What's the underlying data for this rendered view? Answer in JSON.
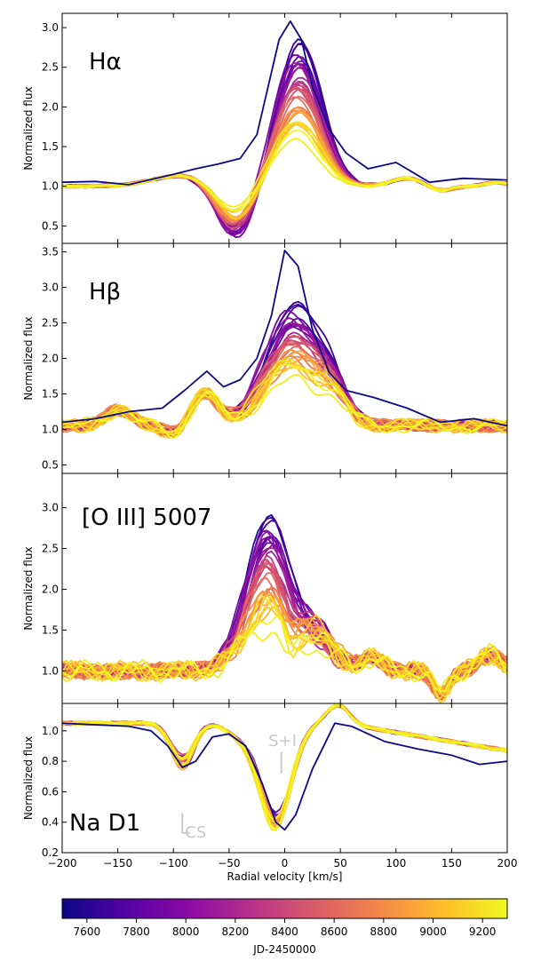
{
  "chart_data": {
    "type": "line",
    "xlabel": "Radial velocity [km/s]",
    "xlim": [
      -200,
      200
    ],
    "xticks": [
      -200,
      -150,
      -100,
      -50,
      0,
      50,
      100,
      150,
      200
    ],
    "xtick_labels": [
      "−200",
      "−150",
      "−100",
      "−50",
      "0",
      "50",
      "100",
      "150",
      "200"
    ],
    "colorbar": {
      "label": "JD-2450000",
      "range": [
        7500,
        9300
      ],
      "ticks": [
        7600,
        7800,
        8000,
        8200,
        8400,
        8600,
        8800,
        9000,
        9200
      ],
      "colormap": "plasma",
      "colormap_stops": [
        "#0d0887",
        "#5302a3",
        "#8b0aa5",
        "#b83289",
        "#db5c68",
        "#f48849",
        "#febd2a",
        "#f0f921"
      ]
    },
    "panels": [
      {
        "id": "halpha",
        "label": "Hα",
        "ylabel": "Normalized flux",
        "ylim": [
          0.28,
          3.18
        ],
        "yticks": [
          0.5,
          1.0,
          1.5,
          2.0,
          2.5,
          3.0
        ],
        "ytick_labels": [
          "0.5",
          "1.0",
          "1.5",
          "2.0",
          "2.5",
          "3.0"
        ],
        "first_epoch_profile": {
          "x": [
            -200,
            -170,
            -140,
            -100,
            -80,
            -60,
            -40,
            -25,
            -15,
            -5,
            5,
            15,
            25,
            40,
            55,
            75,
            100,
            130,
            160,
            200
          ],
          "y": [
            1.05,
            1.06,
            1.02,
            1.15,
            1.22,
            1.28,
            1.35,
            1.65,
            2.25,
            2.85,
            3.08,
            2.85,
            2.25,
            1.72,
            1.42,
            1.22,
            1.3,
            1.05,
            1.1,
            1.08
          ]
        }
      },
      {
        "id": "hbeta",
        "label": "Hβ",
        "ylabel": "Normalized flux",
        "ylim": [
          0.38,
          3.62
        ],
        "yticks": [
          0.5,
          1.0,
          1.5,
          2.0,
          2.5,
          3.0,
          3.5
        ],
        "ytick_labels": [
          "0.5",
          "1.0",
          "1.5",
          "2.0",
          "2.5",
          "3.0",
          "3.5"
        ],
        "first_epoch_profile": {
          "x": [
            -200,
            -170,
            -140,
            -110,
            -90,
            -70,
            -55,
            -40,
            -25,
            -12,
            0,
            12,
            25,
            40,
            55,
            80,
            110,
            140,
            170,
            200
          ],
          "y": [
            1.1,
            1.15,
            1.25,
            1.3,
            1.55,
            1.82,
            1.6,
            1.7,
            2.0,
            2.6,
            3.52,
            3.3,
            2.4,
            1.8,
            1.55,
            1.45,
            1.3,
            1.1,
            1.15,
            1.05
          ]
        }
      },
      {
        "id": "oiii",
        "label": "[O III] 5007",
        "ylabel": "Normalized flux",
        "ylim": [
          0.6,
          3.42
        ],
        "yticks": [
          1.0,
          1.5,
          2.0,
          2.5,
          3.0
        ],
        "ytick_labels": [
          "1.0",
          "1.5",
          "2.0",
          "2.5",
          "3.0"
        ]
      },
      {
        "id": "nad1",
        "label": "Na D1",
        "ylabel": "Normalized flux",
        "ylim": [
          0.2,
          1.18
        ],
        "yticks": [
          0.2,
          0.4,
          0.6,
          0.8,
          1.0
        ],
        "ytick_labels": [
          "0.2",
          "0.4",
          "0.6",
          "0.8",
          "1.0"
        ],
        "annotations": [
          {
            "text": "S+I",
            "x": -2,
            "y": 0.9
          },
          {
            "text": "CS",
            "x": -80,
            "y": 0.3
          }
        ],
        "first_epoch_profile": {
          "x": [
            -200,
            -170,
            -140,
            -120,
            -105,
            -92,
            -80,
            -65,
            -50,
            -35,
            -20,
            -8,
            0,
            10,
            25,
            45,
            60,
            90,
            120,
            150,
            175,
            200
          ],
          "y": [
            1.05,
            1.04,
            1.03,
            1.0,
            0.9,
            0.76,
            0.8,
            0.96,
            0.98,
            0.9,
            0.65,
            0.4,
            0.35,
            0.45,
            0.75,
            1.05,
            1.03,
            0.93,
            0.88,
            0.84,
            0.78,
            0.8
          ]
        }
      }
    ]
  }
}
